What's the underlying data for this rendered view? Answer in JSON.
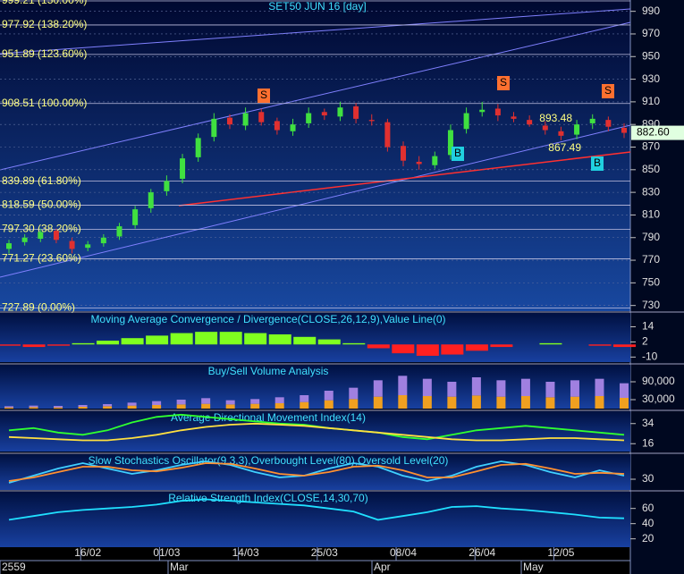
{
  "chart_data": [
    {
      "type": "candlestick",
      "title": "SET50 JUN 16  [day]",
      "categories": [
        null,
        null,
        null,
        null,
        null,
        "16/02",
        null,
        null,
        null,
        null,
        "01/03",
        null,
        null,
        null,
        null,
        "14/03",
        null,
        null,
        null,
        null,
        "25/03",
        null,
        null,
        null,
        null,
        "08/04",
        null,
        null,
        null,
        null,
        "26/04",
        null,
        null,
        null,
        null,
        "12/05",
        null,
        null,
        null,
        null
      ],
      "months": [
        "2559",
        "Mar",
        "Apr",
        "May"
      ],
      "open": [
        780,
        786,
        789,
        796,
        787,
        781,
        785,
        791,
        801,
        816,
        831,
        842,
        861,
        879,
        896,
        889,
        901,
        893,
        884,
        891,
        901,
        897,
        906,
        894,
        892,
        871,
        857,
        854,
        863,
        886,
        901,
        904,
        897,
        894,
        889,
        884,
        881,
        891,
        894,
        887
      ],
      "high": [
        788,
        793,
        798,
        798,
        790,
        787,
        793,
        803,
        818,
        833,
        845,
        864,
        882,
        900,
        899,
        905,
        904,
        896,
        895,
        905,
        904,
        910,
        909,
        899,
        895,
        875,
        862,
        866,
        890,
        905,
        910,
        908,
        901,
        898,
        893,
        888,
        894,
        899,
        897,
        891
      ],
      "low": [
        776,
        783,
        786,
        785,
        776,
        778,
        782,
        788,
        798,
        812,
        827,
        838,
        857,
        875,
        886,
        885,
        889,
        881,
        880,
        887,
        894,
        893,
        891,
        889,
        866,
        853,
        850,
        851,
        859,
        882,
        897,
        893,
        892,
        888,
        881,
        876,
        877,
        886,
        884,
        878
      ],
      "close": [
        785,
        790,
        795,
        788,
        780,
        784,
        790,
        800,
        815,
        830,
        840,
        860,
        878,
        895,
        890,
        900,
        892,
        885,
        890,
        900,
        898,
        905,
        895,
        893,
        870,
        858,
        855,
        862,
        885,
        900,
        903,
        898,
        895,
        890,
        885,
        880,
        890,
        895,
        888,
        882.6
      ],
      "up_color": "#40e040",
      "down_color": "#e03030",
      "ylim": [
        725,
        1000
      ],
      "yticks": [
        730,
        750,
        770,
        790,
        810,
        830,
        850,
        870,
        890,
        910,
        930,
        950,
        970,
        990
      ],
      "grid": true,
      "fib_levels": [
        {
          "value": 999.21,
          "label": "999.21 (150.00%)"
        },
        {
          "value": 977.92,
          "label": "977.92 (138.20%)"
        },
        {
          "value": 951.89,
          "label": "951.89 (123.60%)"
        },
        {
          "value": 908.51,
          "label": "908.51 (100.00%)"
        },
        {
          "value": 839.89,
          "label": "839.89 (61.80%)"
        },
        {
          "value": 818.59,
          "label": "818.59 (50.00%)"
        },
        {
          "value": 797.3,
          "label": "797.30 (38.20%)"
        },
        {
          "value": 771.27,
          "label": "771.27 (23.60%)"
        },
        {
          "value": 727.89,
          "label": "727.89 (0.00%)"
        }
      ],
      "price_labels": [
        893.48,
        867.49
      ],
      "signals": [
        "S",
        "S",
        "S",
        "B",
        "B"
      ],
      "last_price": {
        "value": 882.6,
        "label": "882.60"
      }
    },
    {
      "type": "histogram",
      "title": "Moving Average Convergence / Divergence(CLOSE,26,12,9),Value Line(0)",
      "values": [
        -1,
        -2,
        -1,
        1,
        3,
        5,
        7,
        9,
        10,
        10,
        9,
        8,
        6,
        4,
        1,
        -3,
        -7,
        -9,
        -8,
        -5,
        -2,
        0,
        1,
        0,
        -1,
        -2
      ],
      "up_color": "#80ff20",
      "down_color": "#ff2020",
      "ylim": [
        -14,
        25
      ],
      "yticks": [
        14,
        2,
        -10
      ]
    },
    {
      "type": "stacked_bar",
      "title": "Buy/Sell Volume Analysis",
      "series": [
        {
          "color": "#f0a020",
          "values": [
            4000,
            5000,
            4000,
            6000,
            8000,
            10000,
            12000,
            14000,
            16000,
            14000,
            16000,
            18000,
            22000,
            28000,
            32000,
            40000,
            45000,
            42000,
            40000,
            44000,
            40000,
            42000,
            38000,
            40000,
            42000,
            36000
          ]
        },
        {
          "color": "#a080e0",
          "values": [
            4000,
            5000,
            5000,
            6000,
            7000,
            10000,
            13000,
            16000,
            19000,
            14000,
            16000,
            20000,
            23000,
            32000,
            38000,
            55000,
            65000,
            58000,
            50000,
            61000,
            55000,
            58000,
            52000,
            55000,
            58000,
            49000
          ]
        }
      ],
      "ylim": [
        0,
        147000
      ],
      "yticks": [
        {
          "value": 90000,
          "label": "90,000"
        },
        {
          "value": 30000,
          "label": "30,000"
        }
      ]
    },
    {
      "type": "line",
      "title": "Average Directional Movement Index(14)",
      "series": [
        {
          "color": "#30ff30",
          "values": [
            28,
            30,
            26,
            24,
            28,
            35,
            40,
            42,
            40,
            38,
            36,
            34,
            33,
            30,
            28,
            26,
            22,
            20,
            24,
            28,
            30,
            32,
            30,
            28,
            26,
            24
          ]
        },
        {
          "color": "#ffe040",
          "values": [
            22,
            21,
            20,
            19,
            19,
            21,
            24,
            28,
            31,
            33,
            34,
            33,
            32,
            30,
            28,
            26,
            24,
            22,
            20,
            19,
            19,
            20,
            21,
            21,
            20,
            19
          ]
        }
      ],
      "ylim": [
        9,
        45
      ],
      "yticks": [
        34,
        16
      ]
    },
    {
      "type": "line",
      "title": "Slow Stochastics Oscillator(9,3,3),Overbought Level(80),Oversold Level(20)",
      "series": [
        {
          "color": "#40d0ff",
          "values": [
            20,
            40,
            60,
            75,
            60,
            45,
            55,
            70,
            80,
            70,
            50,
            35,
            40,
            60,
            75,
            65,
            40,
            25,
            40,
            65,
            80,
            70,
            50,
            35,
            55,
            40
          ]
        },
        {
          "color": "#ff9030",
          "values": [
            25,
            35,
            50,
            65,
            65,
            55,
            52,
            62,
            75,
            73,
            60,
            45,
            40,
            50,
            65,
            68,
            55,
            35,
            35,
            52,
            70,
            73,
            60,
            45,
            48,
            45
          ]
        }
      ],
      "ylim": [
        0,
        100
      ],
      "yticks": [
        30
      ]
    },
    {
      "type": "line",
      "title": "Relative Strength Index(CLOSE,14,30,70)",
      "series": [
        {
          "color": "#20e0ff",
          "values": [
            45,
            50,
            55,
            58,
            60,
            62,
            65,
            70,
            72,
            70,
            68,
            66,
            64,
            60,
            56,
            45,
            50,
            55,
            62,
            63,
            60,
            58,
            55,
            52,
            48,
            47
          ]
        }
      ],
      "ylim": [
        9,
        82
      ],
      "yticks": [
        60,
        40,
        20
      ]
    }
  ]
}
